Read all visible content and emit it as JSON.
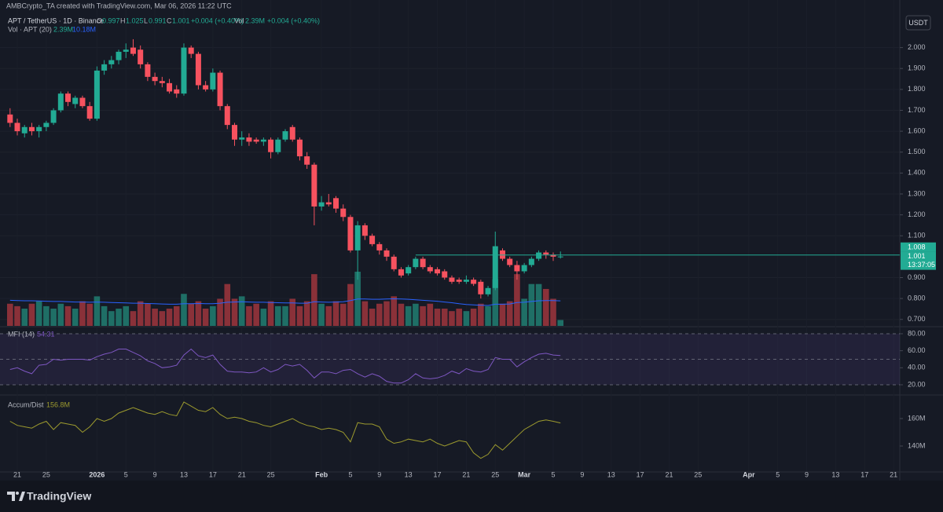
{
  "header": {
    "credit": "AMBCrypto_TA created with TradingView.com, Mar 06, 2026 11:22 UTC",
    "symbol": "APT / TetherUS · 1D · Binance",
    "o_label": "O",
    "h_label": "H",
    "l_label": "L",
    "c_label": "C",
    "change": "+0.004 (+0.40%)",
    "vol_label": "Vol",
    "vol_change": "+0.004 (+0.40%)",
    "currency": "USDT",
    "brand": "TradingView"
  },
  "chart_data": [
    {
      "type": "candlestick",
      "up_color": "#22ab94",
      "down_color": "#f7525f",
      "grid": true,
      "x": [
        "Dec 20",
        "Dec 21",
        "Dec 22",
        "Dec 23",
        "Dec 24",
        "Dec 25",
        "Dec 26",
        "Dec 27",
        "Dec 28",
        "Dec 29",
        "Dec 30",
        "Dec 31",
        "Jan 1",
        "Jan 2",
        "Jan 3",
        "Jan 4",
        "Jan 5",
        "Jan 6",
        "Jan 7",
        "Jan 8",
        "Jan 9",
        "Jan 10",
        "Jan 11",
        "Jan 12",
        "Jan 13",
        "Jan 14",
        "Jan 15",
        "Jan 16",
        "Jan 17",
        "Jan 18",
        "Jan 19",
        "Jan 20",
        "Jan 21",
        "Jan 22",
        "Jan 23",
        "Jan 24",
        "Jan 25",
        "Jan 26",
        "Jan 27",
        "Jan 28",
        "Jan 29",
        "Jan 30",
        "Jan 31",
        "Feb 1",
        "Feb 2",
        "Feb 3",
        "Feb 4",
        "Feb 5",
        "Feb 6",
        "Feb 7",
        "Feb 8",
        "Feb 9",
        "Feb 10",
        "Feb 11",
        "Feb 12",
        "Feb 13",
        "Feb 14",
        "Feb 15",
        "Feb 16",
        "Feb 17",
        "Feb 18",
        "Feb 19",
        "Feb 20",
        "Feb 21",
        "Feb 22",
        "Feb 23",
        "Feb 24",
        "Feb 25",
        "Feb 26",
        "Feb 27",
        "Feb 28",
        "Mar 1",
        "Mar 2",
        "Mar 3",
        "Mar 4",
        "Mar 5",
        "Mar 6"
      ],
      "open": [
        1.68,
        1.64,
        1.59,
        1.62,
        1.6,
        1.62,
        1.64,
        1.7,
        1.78,
        1.73,
        1.76,
        1.72,
        1.66,
        1.89,
        1.92,
        1.94,
        1.98,
        2.0,
        1.99,
        1.92,
        1.86,
        1.84,
        1.83,
        1.8,
        1.78,
        2.0,
        1.97,
        1.82,
        1.8,
        1.88,
        1.72,
        1.63,
        1.56,
        1.57,
        1.56,
        1.55,
        1.56,
        1.5,
        1.56,
        1.62,
        1.56,
        1.48,
        1.44,
        1.24,
        1.26,
        1.28,
        1.23,
        1.19,
        1.03,
        1.15,
        1.1,
        1.06,
        1.03,
        1.0,
        0.94,
        0.92,
        0.95,
        0.99,
        0.95,
        0.94,
        0.93,
        0.9,
        0.89,
        0.88,
        0.89,
        0.88,
        0.82,
        0.85,
        1.03,
        0.99,
        0.96,
        0.93,
        0.96,
        0.99,
        1.02,
        1.01,
        0.997
      ],
      "high": [
        1.71,
        1.66,
        1.63,
        1.64,
        1.63,
        1.65,
        1.71,
        1.79,
        1.79,
        1.77,
        1.77,
        1.74,
        1.91,
        1.94,
        1.96,
        1.99,
        2.02,
        2.04,
        2.01,
        1.93,
        1.88,
        1.86,
        1.85,
        1.82,
        2.02,
        2.01,
        1.98,
        1.84,
        1.9,
        1.89,
        1.73,
        1.64,
        1.6,
        1.59,
        1.57,
        1.57,
        1.57,
        1.57,
        1.61,
        1.63,
        1.57,
        1.5,
        1.45,
        1.29,
        1.3,
        1.29,
        1.25,
        1.2,
        1.17,
        1.16,
        1.11,
        1.07,
        1.04,
        1.01,
        0.95,
        0.96,
        1.0,
        1.0,
        0.96,
        0.95,
        0.94,
        0.91,
        0.9,
        0.91,
        0.9,
        0.89,
        0.86,
        1.12,
        1.04,
        1.0,
        0.98,
        0.97,
        1.0,
        1.03,
        1.03,
        1.02,
        1.025
      ],
      "low": [
        1.62,
        1.58,
        1.57,
        1.58,
        1.57,
        1.6,
        1.63,
        1.69,
        1.72,
        1.71,
        1.71,
        1.65,
        1.65,
        1.87,
        1.9,
        1.92,
        1.95,
        1.96,
        1.9,
        1.84,
        1.82,
        1.81,
        1.78,
        1.76,
        1.77,
        1.95,
        1.8,
        1.79,
        1.79,
        1.7,
        1.61,
        1.53,
        1.53,
        1.53,
        1.54,
        1.53,
        1.47,
        1.49,
        1.55,
        1.55,
        1.46,
        1.42,
        1.15,
        1.22,
        1.24,
        1.21,
        1.17,
        1.02,
        0.89,
        1.08,
        1.05,
        1.01,
        0.98,
        0.93,
        0.9,
        0.91,
        0.94,
        0.94,
        0.92,
        0.91,
        0.89,
        0.87,
        0.87,
        0.87,
        0.86,
        0.8,
        0.81,
        0.84,
        0.98,
        0.95,
        0.89,
        0.92,
        0.95,
        0.98,
        0.99,
        0.98,
        0.991
      ],
      "close": [
        1.64,
        1.6,
        1.62,
        1.6,
        1.62,
        1.64,
        1.7,
        1.78,
        1.74,
        1.76,
        1.72,
        1.66,
        1.89,
        1.92,
        1.94,
        1.98,
        1.99,
        1.97,
        1.92,
        1.86,
        1.84,
        1.83,
        1.79,
        1.78,
        2.0,
        1.97,
        1.82,
        1.8,
        1.88,
        1.72,
        1.63,
        1.56,
        1.57,
        1.55,
        1.55,
        1.56,
        1.5,
        1.56,
        1.6,
        1.56,
        1.48,
        1.44,
        1.24,
        1.26,
        1.25,
        1.23,
        1.19,
        1.03,
        1.15,
        1.1,
        1.06,
        1.03,
        1.0,
        0.94,
        0.91,
        0.95,
        0.99,
        0.95,
        0.93,
        0.92,
        0.9,
        0.88,
        0.88,
        0.89,
        0.87,
        0.82,
        0.85,
        1.05,
        0.99,
        0.96,
        0.93,
        0.96,
        0.99,
        1.02,
        1.01,
        1.0,
        1.001
      ],
      "ylim": [
        0.669,
        2.19
      ],
      "yticks": [
        {
          "value": 0.7,
          "label": "0.700"
        },
        {
          "value": 0.8,
          "label": "0.800"
        },
        {
          "value": 0.9,
          "label": "0.900"
        },
        {
          "value": 1.1,
          "label": "1.100"
        },
        {
          "value": 1.2,
          "label": "1.200"
        },
        {
          "value": 1.3,
          "label": "1.300"
        },
        {
          "value": 1.4,
          "label": "1.400"
        },
        {
          "value": 1.5,
          "label": "1.500"
        },
        {
          "value": 1.6,
          "label": "1.600"
        },
        {
          "value": 1.7,
          "label": "1.700"
        },
        {
          "value": 1.8,
          "label": "1.800"
        },
        {
          "value": 1.9,
          "label": "1.900"
        },
        {
          "value": 2.0,
          "label": "2.000"
        }
      ],
      "xticks": [
        {
          "value": "Dec 21",
          "label": "21"
        },
        {
          "value": "Dec 25",
          "label": "25"
        },
        {
          "value": "Jan 1",
          "label": "2026"
        },
        {
          "value": "Jan 5",
          "label": "5"
        },
        {
          "value": "Jan 9",
          "label": "9"
        },
        {
          "value": "Jan 13",
          "label": "13"
        },
        {
          "value": "Jan 17",
          "label": "17"
        },
        {
          "value": "Jan 21",
          "label": "21"
        },
        {
          "value": "Jan 25",
          "label": "25"
        },
        {
          "value": "Feb 1",
          "label": "Feb"
        },
        {
          "value": "Feb 5",
          "label": "5"
        },
        {
          "value": "Feb 9",
          "label": "9"
        },
        {
          "value": "Feb 13",
          "label": "13"
        },
        {
          "value": "Feb 17",
          "label": "17"
        },
        {
          "value": "Feb 21",
          "label": "21"
        },
        {
          "value": "Feb 25",
          "label": "25"
        },
        {
          "value": "Mar 1",
          "label": "Mar"
        },
        {
          "value": "Mar 5",
          "label": "5"
        },
        {
          "value": "Mar 9",
          "label": "9"
        },
        {
          "value": "Mar 13",
          "label": "13"
        },
        {
          "value": "Mar 17",
          "label": "17"
        },
        {
          "value": "Mar 21",
          "label": "21"
        },
        {
          "value": "Mar 25",
          "label": "25"
        },
        {
          "value": "Apr 1",
          "label": "Apr"
        },
        {
          "value": "Apr 5",
          "label": "5"
        },
        {
          "value": "Apr 9",
          "label": "9"
        },
        {
          "value": "Apr 13",
          "label": "13"
        },
        {
          "value": "Apr 17",
          "label": "17"
        },
        {
          "value": "Apr 21",
          "label": "21"
        }
      ],
      "price_line": {
        "value": 1.008,
        "from": "Feb 14",
        "color": "#22ab94"
      },
      "countdown": "13:37:05",
      "volume": {
        "name": "Vol · APT (20)",
        "legend_value": "2.39M",
        "up_color": "#1f6f66",
        "down_color": "#8a3139",
        "ylim": [
          0,
          44
        ],
        "values": [
          9,
          8,
          7,
          9,
          10,
          8,
          7,
          9,
          8,
          7,
          10,
          9,
          12,
          8,
          6,
          7,
          8,
          6,
          10,
          9,
          7,
          6,
          7,
          8,
          13,
          9,
          10,
          7,
          8,
          11,
          17,
          11,
          12,
          8,
          9,
          7,
          10,
          8,
          8,
          11,
          8,
          10,
          21,
          9,
          8,
          10,
          9,
          17,
          22,
          10,
          7,
          9,
          10,
          12,
          9,
          8,
          9,
          8,
          9,
          7,
          7,
          6,
          7,
          6,
          7,
          9,
          8,
          19,
          9,
          10,
          21,
          11,
          17,
          17,
          15,
          11,
          2.39
        ],
        "ma": {
          "color": "#2962ff",
          "legend_value": "10.18M",
          "values": [
            10.4,
            10.3,
            10.2,
            10.2,
            10.1,
            10.0,
            9.9,
            9.9,
            9.8,
            9.7,
            9.7,
            9.6,
            9.7,
            9.6,
            9.5,
            9.4,
            9.3,
            9.2,
            9.2,
            9.1,
            9.0,
            8.9,
            8.8,
            8.8,
            9.0,
            9.0,
            9.1,
            9.0,
            9.0,
            9.2,
            9.6,
            9.7,
            9.8,
            9.7,
            9.6,
            9.6,
            9.5,
            9.4,
            9.3,
            9.3,
            9.2,
            9.2,
            9.8,
            9.7,
            9.6,
            9.7,
            9.8,
            10.3,
            10.9,
            10.9,
            10.8,
            10.8,
            10.9,
            11.0,
            10.9,
            10.8,
            10.6,
            10.4,
            10.2,
            10.0,
            9.7,
            9.4,
            9.0,
            8.7,
            8.5,
            8.4,
            8.3,
            8.8,
            8.8,
            8.9,
            9.5,
            9.6,
            9.9,
            10.2,
            10.3,
            10.3,
            10.18
          ]
        }
      }
    },
    {
      "type": "line",
      "title": "MFI (14)",
      "color": "#7e57c2",
      "band": [
        20,
        80
      ],
      "band_color": "#7e57c2",
      "levels": [
        80,
        50,
        20
      ],
      "values": [
        38,
        40,
        36,
        33,
        43,
        44,
        50,
        49,
        50,
        50,
        50,
        49,
        53,
        56,
        58,
        62,
        62,
        58,
        54,
        48,
        45,
        40,
        41,
        43,
        55,
        62,
        54,
        52,
        55,
        44,
        36,
        35,
        35,
        34,
        35,
        40,
        35,
        38,
        44,
        42,
        44,
        37,
        28,
        35,
        35,
        33,
        37,
        38,
        33,
        29,
        33,
        30,
        24,
        22,
        22,
        26,
        33,
        28,
        27,
        28,
        31,
        36,
        33,
        39,
        36,
        35,
        38,
        52,
        50,
        50,
        41,
        47,
        52,
        56,
        57,
        55,
        54.31
      ],
      "ylim": [
        8.9,
        84.6
      ],
      "yticks": [
        {
          "value": 20,
          "label": "20.00"
        },
        {
          "value": 40,
          "label": "40.00"
        },
        {
          "value": 60,
          "label": "60.00"
        },
        {
          "value": 80,
          "label": "80.00"
        }
      ]
    },
    {
      "type": "line",
      "title": "Accum/Dist",
      "legend_value": "156.8M",
      "color": "#9c9a2e",
      "values": [
        158,
        155,
        154,
        153,
        156,
        158,
        152,
        157,
        156,
        155,
        150,
        154,
        160,
        158,
        160,
        164,
        166,
        168,
        166,
        164,
        163,
        165,
        163,
        162,
        172,
        169,
        166,
        165,
        168,
        163,
        160,
        161,
        160,
        158,
        157,
        155,
        154,
        156,
        158,
        160,
        157,
        155,
        154,
        152,
        153,
        152,
        150,
        143,
        157,
        156,
        156,
        154,
        145,
        142,
        143,
        145,
        144,
        143,
        145,
        142,
        140,
        142,
        144,
        143,
        135,
        131,
        134,
        141,
        137,
        142,
        147,
        152,
        155,
        158,
        159,
        158,
        156.8
      ],
      "ylim": [
        121.7,
        176
      ],
      "yticks": [
        {
          "value": 140,
          "label": "140M"
        },
        {
          "value": 160,
          "label": "160M"
        }
      ]
    }
  ]
}
